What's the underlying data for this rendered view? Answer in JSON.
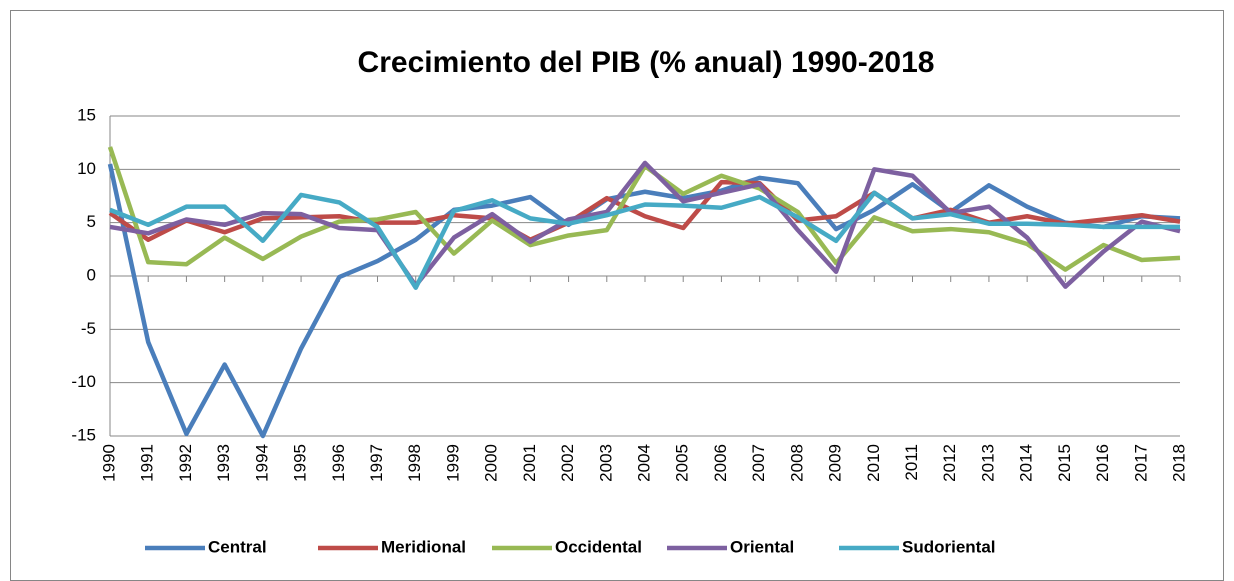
{
  "chart_data": {
    "type": "line",
    "title": "Crecimiento del PIB (% anual) 1990-2018",
    "categories": [
      "1990",
      "1991",
      "1992",
      "1993",
      "1994",
      "1995",
      "1996",
      "1997",
      "1998",
      "1999",
      "2000",
      "2001",
      "2002",
      "2003",
      "2004",
      "2005",
      "2006",
      "2007",
      "2008",
      "2009",
      "2010",
      "2011",
      "2012",
      "2013",
      "2014",
      "2015",
      "2016",
      "2017",
      "2018"
    ],
    "series": [
      {
        "name": "Central",
        "color": "#4a7ebb",
        "values": [
          10.5,
          -6.2,
          -14.8,
          -8.3,
          -15,
          -6.8,
          -0.1,
          1.4,
          3.4,
          6.2,
          6.6,
          7.4,
          4.8,
          7.2,
          7.9,
          7.3,
          8.0,
          9.2,
          8.7,
          4.4,
          6.2,
          8.6,
          6.0,
          8.5,
          6.5,
          5.0,
          4.6,
          5.6,
          5.4
        ]
      },
      {
        "name": "Meridional",
        "color": "#be4b48",
        "values": [
          5.9,
          3.4,
          5.2,
          4.1,
          5.4,
          5.5,
          5.6,
          5.0,
          5.0,
          5.7,
          5.4,
          3.4,
          5.0,
          7.3,
          5.6,
          4.5,
          8.8,
          8.7,
          5.2,
          5.6,
          7.8,
          5.4,
          6.2,
          5.0,
          5.6,
          4.9,
          5.3,
          5.7,
          5.1
        ]
      },
      {
        "name": "Occidental",
        "color": "#98b954",
        "values": [
          12.1,
          1.3,
          1.1,
          3.6,
          1.6,
          3.7,
          5.1,
          5.3,
          6.0,
          2.1,
          5.2,
          2.9,
          3.8,
          4.3,
          10.3,
          7.7,
          9.4,
          8.2,
          6.0,
          1.2,
          5.5,
          4.2,
          4.4,
          4.1,
          3.0,
          0.6,
          2.9,
          1.5,
          1.7
        ]
      },
      {
        "name": "Oriental",
        "color": "#7d60a0",
        "values": [
          4.6,
          4.0,
          5.3,
          4.8,
          5.9,
          5.8,
          4.5,
          4.3,
          -0.9,
          3.6,
          5.8,
          3.2,
          5.3,
          6.0,
          10.6,
          7.0,
          7.8,
          8.6,
          4.3,
          0.4,
          10.0,
          9.4,
          5.9,
          6.5,
          3.6,
          -1.0,
          2.3,
          5.1,
          4.2
        ]
      },
      {
        "name": "Sudoriental",
        "color": "#46aac5",
        "values": [
          6.2,
          4.8,
          6.5,
          6.5,
          3.3,
          7.6,
          6.9,
          4.6,
          -1.1,
          6.1,
          7.1,
          5.4,
          4.9,
          5.7,
          6.7,
          6.6,
          6.4,
          7.4,
          5.5,
          3.3,
          7.8,
          5.4,
          5.8,
          4.9,
          4.9,
          4.8,
          4.6,
          4.6,
          4.6
        ]
      }
    ],
    "ylim": [
      -15,
      15
    ],
    "yticks": [
      15,
      10,
      5,
      0,
      -5,
      -10,
      -15
    ],
    "grid": true,
    "legend": "bottom"
  }
}
